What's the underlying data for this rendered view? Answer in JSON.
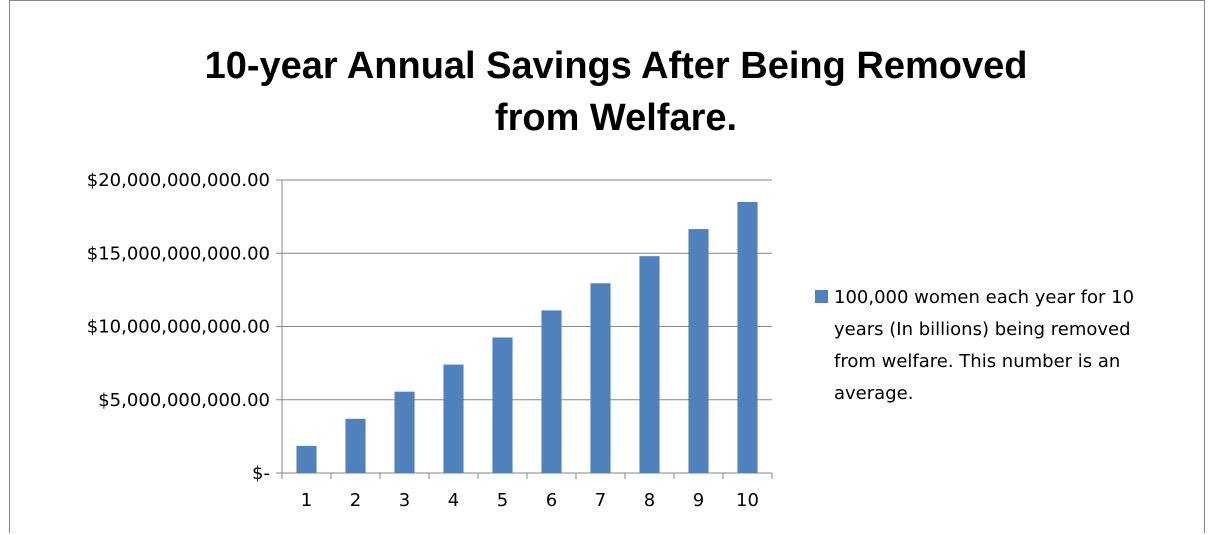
{
  "chart_data": {
    "type": "bar",
    "title_lines": [
      "10-year Annual Savings After Being Removed",
      "from Welfare."
    ],
    "categories": [
      "1",
      "2",
      "3",
      "4",
      "5",
      "6",
      "7",
      "8",
      "9",
      "10"
    ],
    "series": [
      {
        "name": "100,000 women each year for 10 years (In billions) being removed from welfare. This number is an average.",
        "values": [
          1850000000,
          3700000000,
          5550000000,
          7400000000,
          9250000000,
          11100000000,
          12950000000,
          14800000000,
          16650000000,
          18500000000
        ]
      }
    ],
    "ylim": [
      0,
      20000000000
    ],
    "y_ticks": [
      0,
      5000000000,
      10000000000,
      15000000000,
      20000000000
    ],
    "y_tick_labels": [
      "$-",
      "$5,000,000,000.00",
      "$10,000,000,000.00",
      "$15,000,000,000.00",
      "$20,000,000,000.00"
    ],
    "legend_lines": [
      "100,000 women each year for 10",
      "years (In billions) being removed",
      "from welfare. This number is an",
      "average."
    ],
    "legend_position": "right",
    "grid": true,
    "bar_color": "#4f81bd",
    "grid_color": "#868686"
  }
}
